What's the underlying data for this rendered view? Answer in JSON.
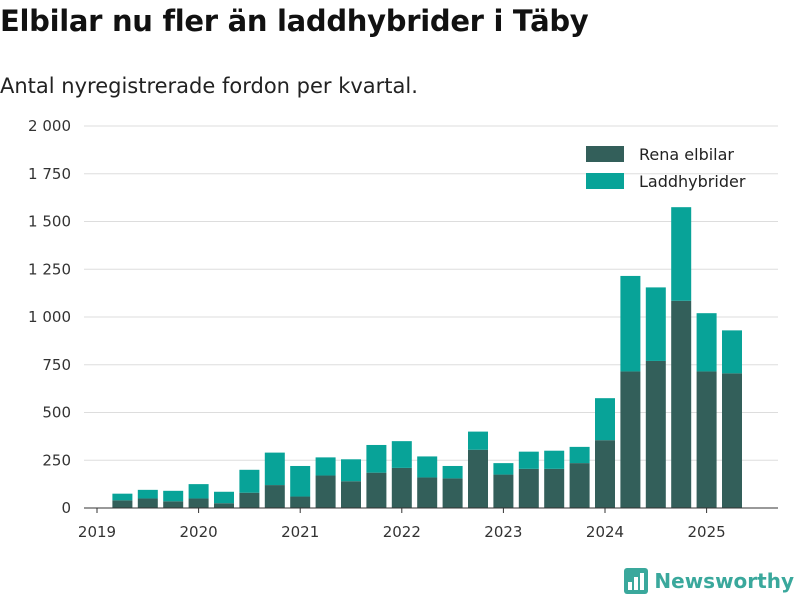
{
  "title": "Elbilar nu fler än laddhybrider i Täby",
  "subtitle": "Antal nyregistrerade fordon per kvartal.",
  "brand": {
    "name": "Newsworthy",
    "icon": "bar-chart-icon",
    "color": "#3aa89c"
  },
  "chart_data": {
    "type": "bar",
    "stacked": true,
    "x": [
      "2019-Q2",
      "2019-Q3",
      "2019-Q4",
      "2020-Q1",
      "2020-Q2",
      "2020-Q3",
      "2020-Q4",
      "2021-Q1",
      "2021-Q2",
      "2021-Q3",
      "2021-Q4",
      "2022-Q1",
      "2022-Q2",
      "2022-Q3",
      "2022-Q4",
      "2023-Q1",
      "2023-Q2",
      "2023-Q3",
      "2023-Q4",
      "2024-Q1",
      "2024-Q2",
      "2024-Q3",
      "2024-Q4",
      "2025-Q1",
      "2025-Q2"
    ],
    "series": [
      {
        "name": "Rena elbilar",
        "color": "#335f5a",
        "values": [
          40,
          50,
          35,
          50,
          25,
          80,
          120,
          60,
          170,
          140,
          185,
          210,
          160,
          155,
          305,
          175,
          205,
          205,
          235,
          355,
          715,
          770,
          1085,
          715,
          705
        ]
      },
      {
        "name": "Laddhybrider",
        "color": "#08a398",
        "values": [
          35,
          45,
          55,
          75,
          60,
          120,
          170,
          160,
          95,
          115,
          145,
          140,
          110,
          65,
          95,
          60,
          90,
          95,
          85,
          220,
          500,
          385,
          490,
          305,
          225
        ]
      }
    ],
    "xticks": [
      "2019",
      "2020",
      "2021",
      "2022",
      "2023",
      "2024",
      "2025"
    ],
    "yticks": [
      "0",
      "250",
      "500",
      "750",
      "1 000",
      "1 250",
      "1 500",
      "1 750",
      "2 000"
    ],
    "ylim": [
      0,
      2000
    ],
    "grid": true,
    "legend": "top-right"
  }
}
